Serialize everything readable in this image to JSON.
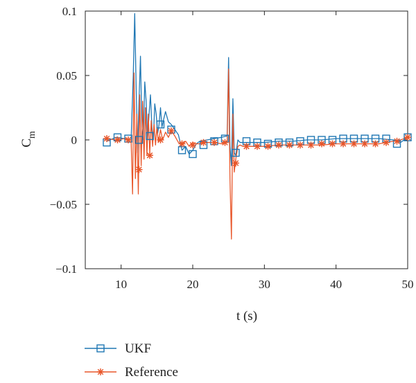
{
  "chart_data": {
    "type": "line",
    "title": "",
    "xlabel": "t (s)",
    "ylabel": "C",
    "ylabel_sub": "m",
    "xlim": [
      5,
      50
    ],
    "ylim": [
      -0.1,
      0.1
    ],
    "xticks": [
      10,
      20,
      30,
      40,
      50
    ],
    "yticks": [
      -0.1,
      -0.05,
      0,
      0.05,
      0.1
    ],
    "xtick_labels": [
      "10",
      "20",
      "30",
      "40",
      "50"
    ],
    "ytick_labels": [
      "−0.1",
      "−0.05",
      "0",
      "0.05",
      "0.1"
    ],
    "grid": false,
    "legend_position": "bottom-left, outside plot",
    "series": [
      {
        "name": "UKF",
        "color": "#1f77b4",
        "marker": "square",
        "x": [
          8.0,
          9.3,
          10.5,
          11.4,
          11.7,
          11.9,
          12.1,
          12.3,
          12.5,
          12.7,
          12.9,
          13.1,
          13.3,
          13.5,
          13.7,
          13.9,
          14.1,
          14.3,
          14.5,
          14.7,
          14.9,
          15.1,
          15.3,
          15.5,
          15.7,
          15.9,
          16.2,
          16.6,
          17.0,
          17.5,
          18.0,
          18.5,
          19.0,
          19.5,
          20.0,
          20.5,
          21.0,
          22.0,
          23.0,
          24.0,
          24.8,
          25.0,
          25.2,
          25.4,
          25.6,
          25.8,
          26.0,
          26.3,
          26.6,
          27.0,
          28.0,
          30.0,
          32.0,
          34.0,
          36.0,
          38.0,
          40.0,
          42.0,
          44.0,
          46.0,
          48.0,
          49.0,
          49.5,
          50.0
        ],
        "y": [
          -0.001,
          0.002,
          0.001,
          0.0,
          0.05,
          0.098,
          0.04,
          -0.01,
          0.03,
          0.065,
          0.01,
          0.0,
          0.045,
          0.03,
          0.0,
          0.02,
          0.035,
          0.01,
          0.0,
          0.028,
          0.02,
          0.005,
          0.012,
          0.025,
          0.01,
          0.015,
          0.022,
          0.014,
          0.012,
          0.008,
          0.004,
          -0.008,
          -0.005,
          -0.011,
          -0.008,
          -0.003,
          -0.001,
          0.0,
          0.001,
          0.002,
          0.003,
          0.064,
          -0.005,
          -0.02,
          0.032,
          -0.01,
          -0.012,
          0.0,
          -0.002,
          -0.002,
          -0.002,
          -0.002,
          -0.001,
          -0.001,
          0.0,
          0.0,
          0.001,
          0.001,
          0.001,
          0.001,
          0.0,
          -0.002,
          0.0,
          0.002
        ],
        "markers_x": [
          8.0,
          9.5,
          11.0,
          12.5,
          14.0,
          15.5,
          17.0,
          18.5,
          20.0,
          21.5,
          23.0,
          24.5,
          26.0,
          27.5,
          29.0,
          30.5,
          32.0,
          33.5,
          35.0,
          36.5,
          38.0,
          39.5,
          41.0,
          42.5,
          44.0,
          45.5,
          47.0,
          48.5,
          50.0
        ],
        "markers_y": [
          -0.002,
          0.002,
          0.001,
          0.0,
          0.003,
          0.012,
          0.008,
          -0.008,
          -0.011,
          -0.004,
          -0.001,
          0.001,
          -0.01,
          -0.001,
          -0.002,
          -0.003,
          -0.002,
          -0.002,
          -0.001,
          0.0,
          0.0,
          0.0,
          0.001,
          0.001,
          0.001,
          0.001,
          0.001,
          -0.003,
          0.002
        ]
      },
      {
        "name": "Reference",
        "color": "#e8562a",
        "marker": "asterisk",
        "x": [
          8.0,
          9.3,
          10.5,
          11.4,
          11.6,
          11.8,
          12.0,
          12.2,
          12.4,
          12.6,
          12.8,
          13.0,
          13.2,
          13.4,
          13.6,
          13.8,
          14.0,
          14.2,
          14.4,
          14.6,
          14.8,
          15.0,
          15.2,
          15.5,
          15.8,
          16.2,
          16.6,
          17.0,
          17.5,
          18.0,
          18.5,
          19.0,
          19.5,
          20.0,
          20.5,
          21.0,
          22.0,
          23.0,
          24.0,
          24.8,
          25.0,
          25.2,
          25.4,
          25.6,
          25.8,
          26.0,
          26.3,
          26.6,
          27.0,
          28.0,
          30.0,
          32.0,
          34.0,
          36.0,
          38.0,
          40.0,
          42.0,
          44.0,
          46.0,
          48.0,
          49.0,
          50.0
        ],
        "y": [
          0.001,
          0.0,
          0.001,
          0.0,
          -0.042,
          0.052,
          -0.03,
          0.02,
          -0.042,
          0.035,
          -0.02,
          0.03,
          -0.015,
          0.025,
          -0.012,
          0.02,
          -0.01,
          0.015,
          -0.005,
          0.012,
          -0.004,
          0.01,
          -0.002,
          0.008,
          0.0,
          0.006,
          0.002,
          0.007,
          0.003,
          -0.002,
          -0.004,
          -0.001,
          -0.005,
          -0.002,
          -0.003,
          -0.003,
          -0.002,
          -0.002,
          -0.003,
          -0.002,
          0.055,
          -0.03,
          -0.077,
          0.02,
          -0.025,
          -0.015,
          -0.005,
          -0.004,
          -0.005,
          -0.005,
          -0.005,
          -0.004,
          -0.004,
          -0.004,
          -0.004,
          -0.003,
          -0.003,
          -0.003,
          -0.003,
          -0.001,
          0.0,
          0.002
        ],
        "markers_x": [
          8.0,
          9.5,
          11.0,
          12.5,
          14.0,
          15.5,
          17.0,
          18.5,
          20.0,
          21.5,
          23.0,
          24.5,
          26.0,
          27.5,
          29.0,
          30.5,
          32.0,
          33.5,
          35.0,
          36.5,
          38.0,
          39.5,
          41.0,
          42.5,
          44.0,
          45.5,
          47.0,
          48.5,
          50.0
        ],
        "markers_y": [
          0.001,
          0.0,
          0.0,
          -0.023,
          -0.012,
          0.0,
          0.007,
          -0.003,
          -0.004,
          -0.002,
          -0.002,
          -0.002,
          -0.018,
          -0.005,
          -0.005,
          -0.005,
          -0.004,
          -0.004,
          -0.004,
          -0.004,
          -0.003,
          -0.003,
          -0.003,
          -0.003,
          -0.003,
          -0.003,
          -0.002,
          -0.001,
          0.002
        ]
      }
    ]
  }
}
